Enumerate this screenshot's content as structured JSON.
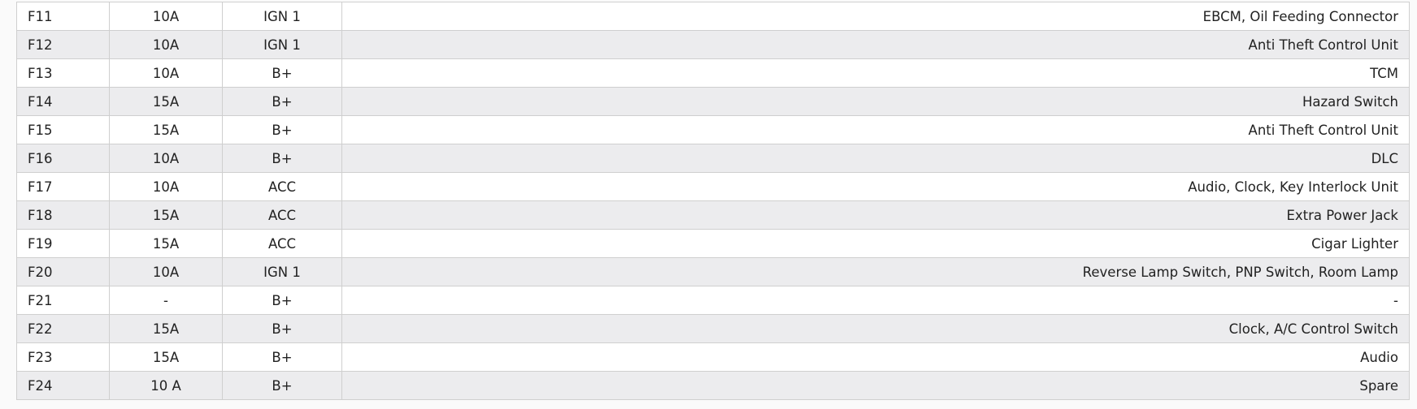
{
  "rows": [
    [
      "F11",
      "10A",
      "IGN 1",
      "EBCM, Oil Feeding Connector"
    ],
    [
      "F12",
      "10A",
      "IGN 1",
      "Anti Theft Control Unit"
    ],
    [
      "F13",
      "10A",
      "B+",
      "TCM"
    ],
    [
      "F14",
      "15A",
      "B+",
      "Hazard Switch"
    ],
    [
      "F15",
      "15A",
      "B+",
      "Anti Theft Control Unit"
    ],
    [
      "F16",
      "10A",
      "B+",
      "DLC"
    ],
    [
      "F17",
      "10A",
      "ACC",
      "Audio, Clock, Key Interlock Unit"
    ],
    [
      "F18",
      "15A",
      "ACC",
      "Extra Power Jack"
    ],
    [
      "F19",
      "15A",
      "ACC",
      "Cigar Lighter"
    ],
    [
      "F20",
      "10A",
      "IGN 1",
      "Reverse Lamp Switch, PNP Switch, Room Lamp"
    ],
    [
      "F21",
      "-",
      "B+",
      "-"
    ],
    [
      "F22",
      "15A",
      "B+",
      "Clock, A/C Control Switch"
    ],
    [
      "F23",
      "15A",
      "B+",
      "Audio"
    ],
    [
      "F24",
      "10 A",
      "B+",
      "Spare"
    ]
  ]
}
